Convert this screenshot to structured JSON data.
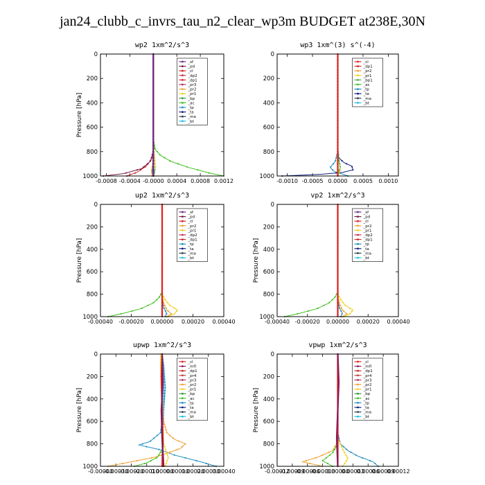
{
  "figure": {
    "title": "jan24_clubb_c_invrs_tau_n2_clear_wp3m  BUDGET at238E,30N"
  },
  "colors": {
    "sf": "#6a2a8a",
    "pd": "#7a1f4a",
    "cl": "#e02020",
    "dp2": "#c03050",
    "dp1": "#d02828",
    "pr3": "#b03060",
    "pr2": "#f0a030",
    "pr1": "#f0d020",
    "bp": "#3a9a3a",
    "ac": "#40c020",
    "tp": "#2090c0",
    "ta": "#102080",
    "ma": "#304050",
    "bt": "#20c0e0",
    "mfl": "#8a1a5a",
    "pr4": "#c04040",
    "bp1": "#50b050"
  },
  "chart_data": [
    {
      "type": "line",
      "title": "wp2   1xm^2/s^3",
      "ylabel": "Pressure [hPa]",
      "xlim": [
        -0.0009,
        0.0012
      ],
      "ylim": [
        1000,
        0
      ],
      "xticks": [
        -0.0008,
        -0.0004,
        0.0,
        0.0004,
        0.0008,
        0.0012
      ],
      "xticklabels": [
        "-0.0008",
        "-0.0004",
        "-0.0000",
        "0.0004",
        "0.0008",
        "0.0012"
      ],
      "yticks": [
        0,
        200,
        400,
        600,
        800,
        1000
      ],
      "legend": [
        "_sf",
        "_pd",
        "_cl",
        "_dp2",
        "_dp1",
        "_pr3",
        "_pr2",
        "_pr1",
        "_bp",
        "_ac",
        "_tp",
        "_ta",
        "_ma",
        "_bt"
      ],
      "series": [
        {
          "name": "_ac",
          "color": "ac",
          "x": [
            0,
            0,
            3e-05,
            0.00012,
            0.0003,
            0.0006,
            0.00095,
            0.0012
          ],
          "y": [
            0,
            700,
            780,
            830,
            880,
            930,
            975,
            1000
          ]
        },
        {
          "name": "_pr1",
          "color": "pr1",
          "x": [
            0,
            0,
            2e-05,
            4e-05,
            2e-05,
            1e-05
          ],
          "y": [
            0,
            750,
            850,
            930,
            980,
            1000
          ]
        },
        {
          "name": "_dp1",
          "color": "dp1",
          "x": [
            0,
            0,
            -3e-05,
            -0.00012,
            -0.00028,
            -0.00045
          ],
          "y": [
            0,
            780,
            860,
            920,
            970,
            1000
          ]
        },
        {
          "name": "_pd",
          "color": "pd",
          "x": [
            0,
            0,
            -5e-05,
            -0.0002,
            -0.0005,
            -0.00085
          ],
          "y": [
            0,
            800,
            880,
            940,
            980,
            1000
          ]
        },
        {
          "name": "_pr2",
          "color": "pr2",
          "x": [
            0,
            0,
            -1e-05,
            -3e-05,
            -2e-05
          ],
          "y": [
            0,
            800,
            900,
            960,
            1000
          ]
        },
        {
          "name": "_tp",
          "color": "tp",
          "x": [
            0,
            0,
            1e-05,
            -2e-05,
            1e-05
          ],
          "y": [
            0,
            820,
            900,
            960,
            1000
          ]
        },
        {
          "name": "_bt",
          "color": "bt",
          "x": [
            0,
            0,
            1e-05,
            2e-05,
            0.0
          ],
          "y": [
            0,
            850,
            920,
            970,
            1000
          ]
        },
        {
          "name": "_cl",
          "color": "cl",
          "x": [
            0,
            0,
            0,
            0,
            0
          ],
          "y": [
            0,
            250,
            500,
            750,
            1000
          ]
        },
        {
          "name": "_sf",
          "color": "sf",
          "x": [
            0,
            0,
            0
          ],
          "y": [
            0,
            500,
            1000
          ]
        }
      ]
    },
    {
      "type": "line",
      "title": "wp3   1xm^(3) s^(-4)",
      "ylabel": "",
      "xlim": [
        -0.0012,
        0.0012
      ],
      "ylim": [
        1000,
        0
      ],
      "xticks": [
        -0.001,
        -0.0005,
        0.0,
        0.0005,
        0.001
      ],
      "xticklabels": [
        "-0.0010",
        "-0.0005",
        "0.0000",
        "0.0005",
        "0.0010"
      ],
      "yticks": [
        0,
        200,
        400,
        600,
        800,
        1000
      ],
      "legend": [
        "_cl",
        "_dp1",
        "_pr2",
        "_pr1",
        "_bp1",
        "_ac",
        "_tp",
        "_ta",
        "_ma",
        "_bt"
      ],
      "series": [
        {
          "name": "_ta",
          "color": "ta",
          "x": [
            0,
            0,
            2e-05,
            0.00012,
            0.00028,
            0.0003,
            0.0001,
            -0.0003,
            -0.0007,
            -0.0011
          ],
          "y": [
            0,
            780,
            850,
            890,
            920,
            950,
            970,
            985,
            993,
            1000
          ]
        },
        {
          "name": "_tp",
          "color": "tp",
          "x": [
            0,
            0,
            -5e-05,
            -0.00015,
            -8e-05,
            0.0001,
            0.0002
          ],
          "y": [
            0,
            800,
            880,
            930,
            960,
            985,
            1000
          ]
        },
        {
          "name": "_ac",
          "color": "ac",
          "x": [
            0,
            0,
            2e-05,
            5e-05,
            3e-05,
            0.0
          ],
          "y": [
            0,
            780,
            860,
            930,
            970,
            1000
          ]
        },
        {
          "name": "_pr1",
          "color": "pr1",
          "x": [
            0,
            0,
            -1e-05,
            2e-05,
            1e-05
          ],
          "y": [
            0,
            800,
            900,
            960,
            1000
          ]
        },
        {
          "name": "_cl",
          "color": "cl",
          "x": [
            0,
            0,
            0,
            0,
            0
          ],
          "y": [
            0,
            250,
            500,
            750,
            1000
          ]
        }
      ]
    },
    {
      "type": "line",
      "title": "up2   1xm^2/s^3",
      "ylabel": "Pressure [hPa]",
      "xlim": [
        -0.0004,
        0.0004
      ],
      "ylim": [
        1000,
        0
      ],
      "xticks": [
        -0.0004,
        -0.0002,
        0.0,
        0.0002,
        0.0004
      ],
      "xticklabels": [
        "-0.00040",
        "-0.00020",
        "0.00000",
        "0.00020",
        "0.00040"
      ],
      "yticks": [
        0,
        200,
        400,
        600,
        800,
        1000
      ],
      "legend": [
        "_sf",
        "_pd",
        "_cl",
        "_pr2",
        "_pr1",
        "_dp2",
        "_dp1",
        "_tp",
        "_ta",
        "_ma",
        "_bt"
      ],
      "series": [
        {
          "name": "_dp1",
          "color": "ac",
          "x": [
            0,
            0,
            -2e-05,
            -6e-05,
            -0.00014,
            -0.00025,
            -0.00035
          ],
          "y": [
            0,
            780,
            830,
            880,
            930,
            970,
            1000
          ]
        },
        {
          "name": "_pr1",
          "color": "pr1",
          "x": [
            0,
            0,
            2e-05,
            5e-05,
            0.0001,
            8e-05,
            4e-05
          ],
          "y": [
            0,
            800,
            850,
            900,
            940,
            975,
            1000
          ]
        },
        {
          "name": "_pr2",
          "color": "pr2",
          "x": [
            0,
            0,
            1e-05,
            3e-05,
            6e-05,
            3e-05
          ],
          "y": [
            0,
            820,
            880,
            940,
            975,
            1000
          ]
        },
        {
          "name": "_tp",
          "color": "tp",
          "x": [
            0,
            0,
            1e-05,
            3e-05,
            2e-05
          ],
          "y": [
            0,
            850,
            920,
            970,
            1000
          ]
        },
        {
          "name": "_cl",
          "color": "cl",
          "x": [
            0,
            0,
            0,
            0,
            0
          ],
          "y": [
            0,
            250,
            500,
            750,
            1000
          ]
        }
      ]
    },
    {
      "type": "line",
      "title": "vp2   1xm^2/s^3",
      "ylabel": "Pressure [hPa]",
      "xlim": [
        -0.0004,
        0.0004
      ],
      "ylim": [
        1000,
        0
      ],
      "xticks": [
        -0.0004,
        -0.0002,
        0.0,
        0.0002,
        0.0004
      ],
      "xticklabels": [
        "-0.00040",
        "-0.00020",
        "0.00000",
        "0.00020",
        "0.00040"
      ],
      "yticks": [
        0,
        200,
        400,
        600,
        800,
        1000
      ],
      "legend": [
        "_sf",
        "_pd",
        "_cl",
        "_pr2",
        "_pr1",
        "_dp2",
        "_dp1",
        "_tp",
        "_ta",
        "_ma",
        "_bt"
      ],
      "series": [
        {
          "name": "_dp1",
          "color": "ac",
          "x": [
            0,
            0,
            -2e-05,
            -6e-05,
            -0.00014,
            -0.00025,
            -0.00035
          ],
          "y": [
            0,
            780,
            830,
            880,
            930,
            970,
            1000
          ]
        },
        {
          "name": "_pr1",
          "color": "pr1",
          "x": [
            0,
            0,
            2e-05,
            5e-05,
            0.0001,
            8e-05,
            4e-05
          ],
          "y": [
            0,
            800,
            850,
            900,
            940,
            975,
            1000
          ]
        },
        {
          "name": "_pr2",
          "color": "pr2",
          "x": [
            0,
            0,
            1e-05,
            3e-05,
            6e-05,
            3e-05
          ],
          "y": [
            0,
            820,
            880,
            940,
            975,
            1000
          ]
        },
        {
          "name": "_tp",
          "color": "tp",
          "x": [
            0,
            0,
            1e-05,
            3e-05,
            2e-05
          ],
          "y": [
            0,
            850,
            920,
            970,
            1000
          ]
        },
        {
          "name": "_cl",
          "color": "cl",
          "x": [
            0,
            0,
            0,
            0,
            0
          ],
          "y": [
            0,
            250,
            500,
            750,
            1000
          ]
        }
      ]
    },
    {
      "type": "line",
      "title": "upwp   1xm^2/s^3",
      "ylabel": "Pressure [hPa]",
      "xlim": [
        -0.0004,
        0.0004
      ],
      "ylim": [
        1000,
        0
      ],
      "xticks": [
        -0.0004,
        -0.0003,
        -0.0002,
        -0.0001,
        0.0,
        0.0001,
        0.0002,
        0.0003,
        0.0004
      ],
      "xticklabels": [
        "-0.00040",
        "-0.00030",
        "-0.00020",
        "-0.00010",
        "0.00000",
        "0.00010",
        "0.00020",
        "0.00030",
        "0.00040"
      ],
      "yticks": [
        0,
        200,
        400,
        600,
        800,
        1000
      ],
      "legend": [
        "_cl",
        "_mfl",
        "_dp1",
        "_pr4",
        "_pr3",
        "_pr2",
        "_pr1",
        "_bp",
        "_ac",
        "_tp",
        "_ta",
        "_ma",
        "_bt"
      ],
      "series": [
        {
          "name": "_tp",
          "color": "tp",
          "x": [
            0,
            1e-05,
            2e-05,
            1e-05,
            -1e-05,
            -8e-05,
            -0.00015,
            -2e-05,
            8e-05,
            0.00025,
            0.00035
          ],
          "y": [
            0,
            100,
            300,
            500,
            700,
            780,
            810,
            850,
            900,
            960,
            1000
          ]
        },
        {
          "name": "_pr2",
          "color": "pr2",
          "x": [
            0,
            0,
            1e-05,
            3e-05,
            8e-05,
            0.00015,
            0.00012,
            4e-05,
            -5e-05,
            -0.0002,
            -0.00035
          ],
          "y": [
            0,
            300,
            600,
            700,
            760,
            800,
            840,
            880,
            920,
            960,
            1000
          ]
        },
        {
          "name": "_pr1",
          "color": "pr1",
          "x": [
            -1e-05,
            -1e-05,
            0,
            1e-05,
            4e-05,
            2e-05
          ],
          "y": [
            0,
            100,
            400,
            800,
            920,
            1000
          ]
        },
        {
          "name": "_ac",
          "color": "ac",
          "x": [
            0,
            0,
            0,
            -3e-05,
            -0.0001,
            -0.00018
          ],
          "y": [
            0,
            500,
            850,
            920,
            970,
            1000
          ]
        },
        {
          "name": "_bt",
          "color": "bt",
          "x": [
            0,
            1e-05,
            1e-05,
            0,
            0
          ],
          "y": [
            0,
            200,
            500,
            800,
            1000
          ]
        },
        {
          "name": "_cl",
          "color": "cl",
          "x": [
            0,
            -5e-06,
            0,
            5e-06,
            0
          ],
          "y": [
            0,
            200,
            500,
            800,
            1000
          ]
        },
        {
          "name": "_mfl",
          "color": "mfl",
          "x": [
            0,
            5e-06,
            -5e-06,
            0,
            1e-05
          ],
          "y": [
            0,
            250,
            500,
            750,
            1000
          ]
        }
      ]
    },
    {
      "type": "line",
      "title": "vpwp   1xm^2/s^3",
      "ylabel": "Pressure [hPa]",
      "xlim": [
        -0.00012,
        0.00012
      ],
      "ylim": [
        1000,
        0
      ],
      "xticks": [
        -0.00012,
        -9e-05,
        -6e-05,
        -3e-05,
        0.0,
        3e-05,
        6e-05,
        9e-05,
        0.00012
      ],
      "xticklabels": [
        "-0.00012",
        "-0.00009",
        "-0.00006",
        "-0.00003",
        "0.00000",
        "0.00003",
        "0.00006",
        "0.00009",
        "0.00012"
      ],
      "yticks": [
        0,
        200,
        400,
        600,
        800,
        1000
      ],
      "legend": [
        "_cl",
        "_mfl",
        "_dp1",
        "_pr4",
        "_pr3",
        "_pr2",
        "_pr1",
        "_bp",
        "_ac",
        "_tp",
        "_ta",
        "_ma",
        "_bt"
      ],
      "series": [
        {
          "name": "_tp",
          "color": "tp",
          "x": [
            0,
            0,
            5e-06,
            2e-05,
            4e-05,
            7e-05,
            8e-05
          ],
          "y": [
            0,
            700,
            800,
            860,
            910,
            960,
            1000
          ]
        },
        {
          "name": "_pr2",
          "color": "pr2",
          "x": [
            0,
            0,
            -1e-05,
            -4e-05,
            -7e-05,
            -3e-05
          ],
          "y": [
            0,
            780,
            860,
            920,
            960,
            1000
          ]
        },
        {
          "name": "_pr1",
          "color": "pr1",
          "x": [
            0,
            0,
            1e-05,
            2e-05,
            1e-05
          ],
          "y": [
            0,
            750,
            850,
            930,
            1000
          ]
        },
        {
          "name": "_ac",
          "color": "ac",
          "x": [
            0,
            0,
            -1e-05,
            -3e-05,
            -1e-05
          ],
          "y": [
            0,
            800,
            880,
            950,
            1000
          ]
        },
        {
          "name": "_cl",
          "color": "cl",
          "x": [
            0,
            0,
            0,
            0,
            0
          ],
          "y": [
            0,
            250,
            500,
            750,
            1000
          ]
        },
        {
          "name": "_mfl",
          "color": "mfl",
          "x": [
            0,
            2e-06,
            0,
            -2e-06,
            0
          ],
          "y": [
            0,
            250,
            500,
            750,
            1000
          ]
        }
      ]
    }
  ]
}
